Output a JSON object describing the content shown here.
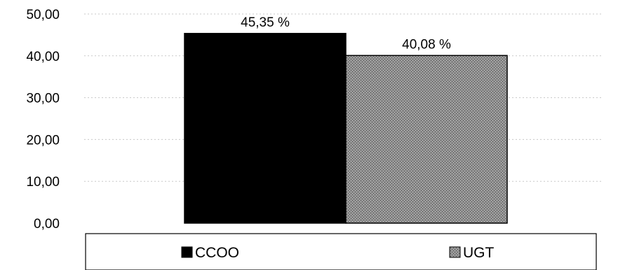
{
  "chart_data": {
    "type": "bar",
    "categories": [
      "CCOO",
      "UGT"
    ],
    "values": [
      45.35,
      40.08
    ],
    "data_labels": [
      "45,35 %",
      "40,08 %"
    ],
    "ylim": [
      0,
      50
    ],
    "y_ticks": [
      0,
      10,
      20,
      30,
      40,
      50
    ],
    "y_tick_labels": [
      "0,00",
      "10,00",
      "20,00",
      "30,00",
      "40,00",
      "50,00"
    ],
    "grid": true,
    "legend": {
      "position": "bottom",
      "entries": [
        "CCOO",
        "UGT"
      ]
    },
    "colors": {
      "CCOO": "#000000",
      "UGT": "#8a8a8a",
      "grid": "#c8c8c8"
    }
  }
}
